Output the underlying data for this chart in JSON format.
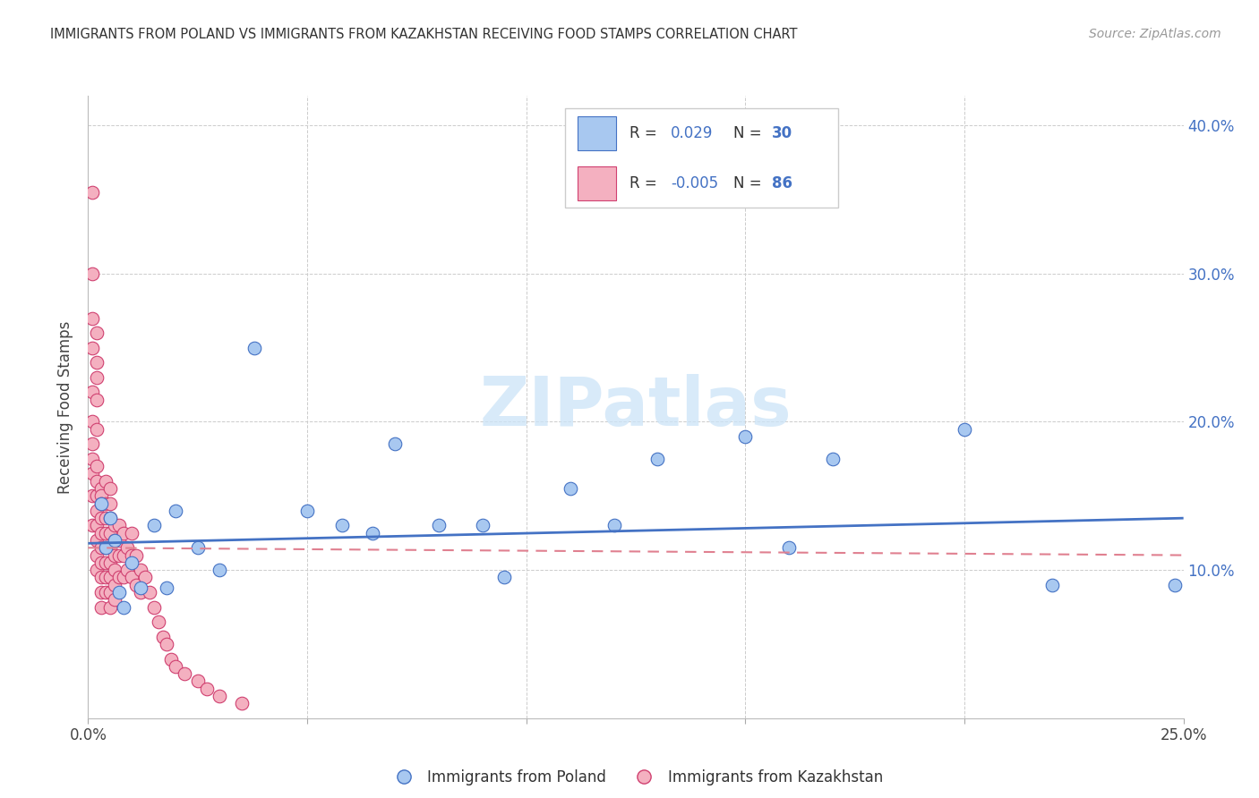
{
  "title": "IMMIGRANTS FROM POLAND VS IMMIGRANTS FROM KAZAKHSTAN RECEIVING FOOD STAMPS CORRELATION CHART",
  "source": "Source: ZipAtlas.com",
  "ylabel": "Receiving Food Stamps",
  "xlim": [
    0.0,
    0.25
  ],
  "ylim": [
    0.0,
    0.42
  ],
  "yticks": [
    0.0,
    0.1,
    0.2,
    0.3,
    0.4
  ],
  "xticks": [
    0.0,
    0.05,
    0.1,
    0.15,
    0.2,
    0.25
  ],
  "poland_color": "#a8c8f0",
  "poland_edge_color": "#4472c4",
  "kazakhstan_color": "#f4b0c0",
  "kazakhstan_edge_color": "#d04070",
  "trend_poland_color": "#4472c4",
  "trend_kazakhstan_color": "#e08090",
  "watermark": "ZIPatlas",
  "poland_x": [
    0.003,
    0.004,
    0.005,
    0.006,
    0.007,
    0.008,
    0.01,
    0.012,
    0.015,
    0.018,
    0.02,
    0.025,
    0.03,
    0.038,
    0.05,
    0.058,
    0.065,
    0.07,
    0.08,
    0.09,
    0.095,
    0.11,
    0.12,
    0.13,
    0.15,
    0.16,
    0.17,
    0.2,
    0.22,
    0.248
  ],
  "poland_y": [
    0.145,
    0.115,
    0.135,
    0.12,
    0.085,
    0.075,
    0.105,
    0.088,
    0.13,
    0.088,
    0.14,
    0.115,
    0.1,
    0.25,
    0.14,
    0.13,
    0.125,
    0.185,
    0.13,
    0.13,
    0.095,
    0.155,
    0.13,
    0.175,
    0.19,
    0.115,
    0.175,
    0.195,
    0.09,
    0.09
  ],
  "kazakhstan_x": [
    0.001,
    0.001,
    0.001,
    0.001,
    0.001,
    0.001,
    0.001,
    0.001,
    0.001,
    0.001,
    0.001,
    0.002,
    0.002,
    0.002,
    0.002,
    0.002,
    0.002,
    0.002,
    0.002,
    0.002,
    0.002,
    0.002,
    0.002,
    0.002,
    0.003,
    0.003,
    0.003,
    0.003,
    0.003,
    0.003,
    0.003,
    0.003,
    0.003,
    0.003,
    0.004,
    0.004,
    0.004,
    0.004,
    0.004,
    0.004,
    0.004,
    0.004,
    0.005,
    0.005,
    0.005,
    0.005,
    0.005,
    0.005,
    0.005,
    0.005,
    0.005,
    0.006,
    0.006,
    0.006,
    0.006,
    0.006,
    0.006,
    0.007,
    0.007,
    0.007,
    0.007,
    0.008,
    0.008,
    0.008,
    0.009,
    0.009,
    0.01,
    0.01,
    0.01,
    0.011,
    0.011,
    0.012,
    0.012,
    0.013,
    0.014,
    0.015,
    0.016,
    0.017,
    0.018,
    0.019,
    0.02,
    0.022,
    0.025,
    0.027,
    0.03,
    0.035
  ],
  "kazakhstan_y": [
    0.355,
    0.3,
    0.27,
    0.25,
    0.22,
    0.2,
    0.185,
    0.175,
    0.165,
    0.15,
    0.13,
    0.26,
    0.24,
    0.23,
    0.215,
    0.195,
    0.17,
    0.16,
    0.15,
    0.14,
    0.13,
    0.12,
    0.11,
    0.1,
    0.155,
    0.15,
    0.145,
    0.135,
    0.125,
    0.115,
    0.105,
    0.095,
    0.085,
    0.075,
    0.16,
    0.145,
    0.135,
    0.125,
    0.115,
    0.105,
    0.095,
    0.085,
    0.155,
    0.145,
    0.135,
    0.125,
    0.115,
    0.105,
    0.095,
    0.085,
    0.075,
    0.13,
    0.12,
    0.11,
    0.1,
    0.09,
    0.08,
    0.13,
    0.12,
    0.11,
    0.095,
    0.125,
    0.11,
    0.095,
    0.115,
    0.1,
    0.125,
    0.11,
    0.095,
    0.11,
    0.09,
    0.1,
    0.085,
    0.095,
    0.085,
    0.075,
    0.065,
    0.055,
    0.05,
    0.04,
    0.035,
    0.03,
    0.025,
    0.02,
    0.015,
    0.01
  ],
  "poland_trend_x": [
    0.0,
    0.25
  ],
  "poland_trend_y": [
    0.118,
    0.135
  ],
  "kazakhstan_trend_x": [
    0.0,
    0.25
  ],
  "kazakhstan_trend_y": [
    0.115,
    0.11
  ]
}
